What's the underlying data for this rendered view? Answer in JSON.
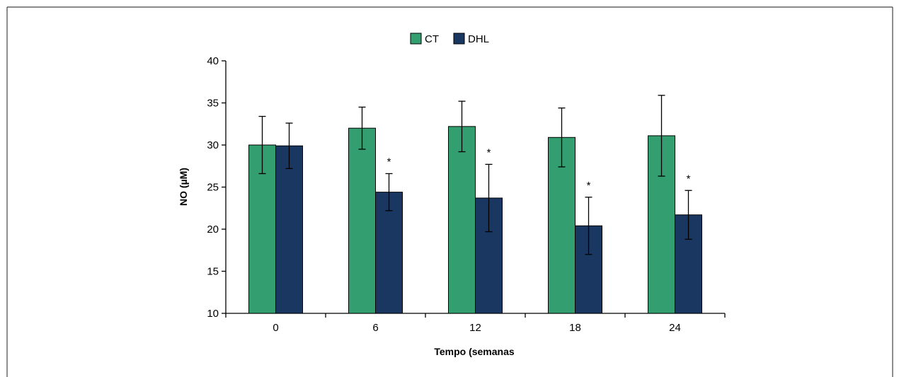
{
  "chart_data": {
    "type": "bar",
    "categories": [
      "0",
      "6",
      "12",
      "18",
      "24"
    ],
    "series": [
      {
        "name": "CT",
        "color": "#339e70",
        "values": [
          30.0,
          32.0,
          32.2,
          30.9,
          31.1
        ],
        "error": [
          3.4,
          2.5,
          3.0,
          3.5,
          4.8
        ],
        "significance": [
          "",
          "",
          "",
          "",
          ""
        ]
      },
      {
        "name": "DHL",
        "color": "#193760",
        "values": [
          29.9,
          24.4,
          23.7,
          20.4,
          21.7
        ],
        "error": [
          2.7,
          2.2,
          4.0,
          3.4,
          2.9
        ],
        "significance": [
          "",
          "*",
          "*",
          "*",
          "*"
        ]
      }
    ],
    "title": "",
    "xlabel": "Tempo (semanas",
    "ylabel": "NO (µM)",
    "ylim": [
      10,
      40
    ],
    "yticks": [
      "10",
      "15",
      "20",
      "25",
      "30",
      "35",
      "40"
    ],
    "grid": false,
    "legend_position": "top-center"
  }
}
